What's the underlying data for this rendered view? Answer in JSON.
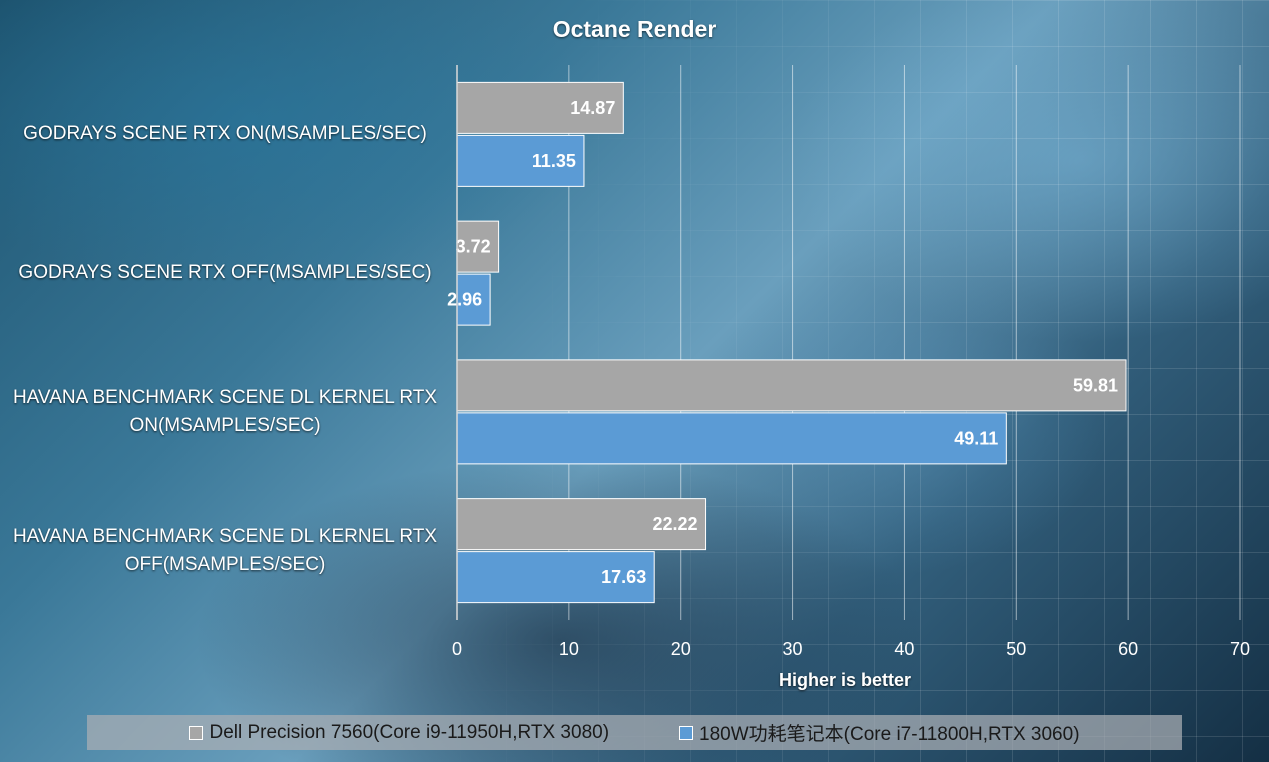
{
  "chart_data": {
    "type": "bar",
    "orientation": "horizontal",
    "title": "Octane Render",
    "xlabel": "Higher is better",
    "ylabel": "",
    "xlim": [
      0,
      70
    ],
    "x_ticks": [
      0,
      10,
      20,
      30,
      40,
      50,
      60,
      70
    ],
    "grid": true,
    "legend_position": "bottom",
    "categories": [
      "GODRAYS SCENE RTX ON(MSAMPLES/SEC)",
      "GODRAYS SCENE RTX OFF(MSAMPLES/SEC)",
      "HAVANA BENCHMARK SCENE DL KERNEL RTX ON(MSAMPLES/SEC)",
      "HAVANA BENCHMARK SCENE DL KERNEL RTX OFF(MSAMPLES/SEC)"
    ],
    "category_lines": [
      [
        "GODRAYS SCENE RTX ON(MSAMPLES/SEC)"
      ],
      [
        "GODRAYS SCENE RTX OFF(MSAMPLES/SEC)"
      ],
      [
        "HAVANA BENCHMARK SCENE DL KERNEL RTX",
        "ON(MSAMPLES/SEC)"
      ],
      [
        "HAVANA BENCHMARK SCENE DL KERNEL RTX",
        "OFF(MSAMPLES/SEC)"
      ]
    ],
    "series": [
      {
        "name": "Dell Precision 7560(Core i9-11950H,RTX 3080)",
        "color": "#a6a6a6",
        "values": [
          14.87,
          3.72,
          59.81,
          22.22
        ],
        "value_labels": [
          "14.87",
          "3.72",
          "59.81",
          "22.22"
        ]
      },
      {
        "name": "180W功耗笔记本(Core i7-11800H,RTX 3060)",
        "color": "#5b9bd5",
        "values": [
          11.35,
          2.96,
          49.11,
          17.63
        ],
        "value_labels": [
          "11.35",
          "2.96",
          "49.11",
          "17.63"
        ]
      }
    ]
  }
}
